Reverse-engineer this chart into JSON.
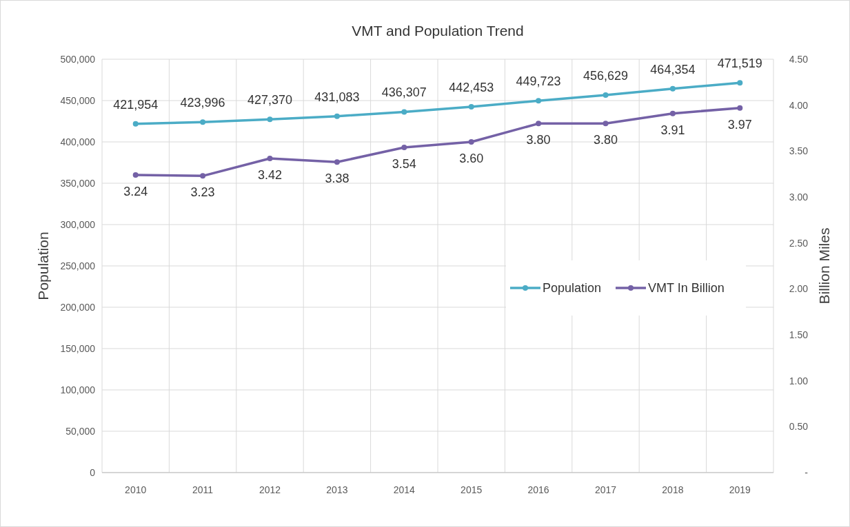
{
  "chart_data": {
    "type": "line",
    "title": "VMT and Population Trend",
    "ylabel": "Population",
    "y2label": "Billion Miles",
    "categories": [
      "2010",
      "2011",
      "2012",
      "2013",
      "2014",
      "2015",
      "2016",
      "2017",
      "2018",
      "2019"
    ],
    "series": [
      {
        "name": "Population",
        "color": "#4bacc6",
        "values": [
          421954,
          423996,
          427370,
          431083,
          436307,
          442453,
          449723,
          456629,
          464354,
          471519
        ],
        "value_labels": [
          "421,954",
          "423,996",
          "427,370",
          "431,083",
          "436,307",
          "442,453",
          "449,723",
          "456,629",
          "464,354",
          "471,519"
        ]
      },
      {
        "name": "VMT In Billion",
        "color": "#7461a6",
        "axis": "y2",
        "values": [
          3.24,
          3.23,
          3.42,
          3.38,
          3.54,
          3.6,
          3.8,
          3.8,
          3.91,
          3.97
        ],
        "value_labels": [
          "3.24",
          "3.23",
          "3.42",
          "3.38",
          "3.54",
          "3.60",
          "3.80",
          "3.80",
          "3.91",
          "3.97"
        ]
      }
    ],
    "ylim": [
      0,
      500000
    ],
    "yticks": [
      {
        "value": 0,
        "label": "0"
      },
      {
        "value": 50000,
        "label": "50,000"
      },
      {
        "value": 100000,
        "label": "100,000"
      },
      {
        "value": 150000,
        "label": "150,000"
      },
      {
        "value": 200000,
        "label": "200,000"
      },
      {
        "value": 250000,
        "label": "250,000"
      },
      {
        "value": 300000,
        "label": "300,000"
      },
      {
        "value": 350000,
        "label": "350,000"
      },
      {
        "value": 400000,
        "label": "400,000"
      },
      {
        "value": 450000,
        "label": "450,000"
      },
      {
        "value": 500000,
        "label": "500,000"
      }
    ],
    "y2lim": [
      0,
      4.5
    ],
    "y2ticks": [
      {
        "value": 0,
        "label": "-"
      },
      {
        "value": 0.5,
        "label": "0.50"
      },
      {
        "value": 1,
        "label": "1.00"
      },
      {
        "value": 1.5,
        "label": "1.50"
      },
      {
        "value": 2,
        "label": "2.00"
      },
      {
        "value": 2.5,
        "label": "2.50"
      },
      {
        "value": 3,
        "label": "3.00"
      },
      {
        "value": 3.5,
        "label": "3.50"
      },
      {
        "value": 4,
        "label": "4.00"
      },
      {
        "value": 4.5,
        "label": "4.50"
      }
    ],
    "grid": true,
    "legend": "right",
    "marker": "circle",
    "line_style": "solid"
  }
}
